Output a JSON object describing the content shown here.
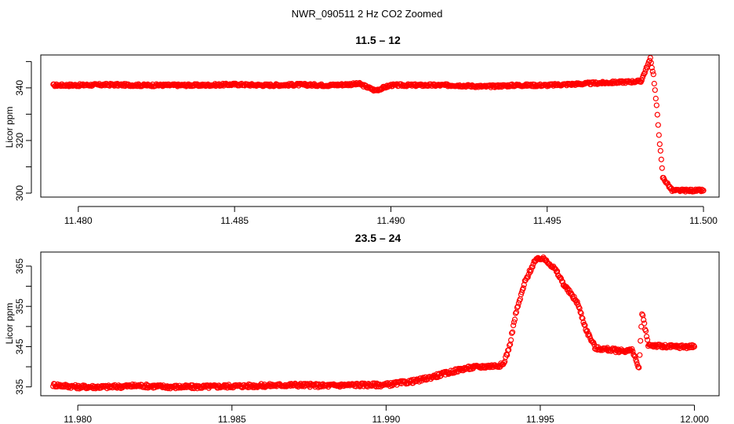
{
  "figure_title": "NWR_090511  2 Hz CO2 Zoomed",
  "chart_data": [
    {
      "type": "scatter",
      "title": "11.5 – 12",
      "xlabel": "",
      "ylabel": "Licor ppm",
      "xlim": [
        11.4788,
        11.5005
      ],
      "ylim": [
        298.5,
        352.5
      ],
      "x_ticks": [
        11.48,
        11.485,
        11.49,
        11.495,
        11.5
      ],
      "x_tick_labels": [
        "11.480",
        "11.485",
        "11.490",
        "11.495",
        "11.500"
      ],
      "y_ticks": [
        300,
        320,
        340
      ],
      "y_tick_labels": [
        "300",
        "320",
        "340"
      ],
      "marker": "open-circle",
      "color": "#ff0000",
      "grid": false,
      "series": [
        {
          "x": [
            11.4792,
            11.48,
            11.481,
            11.482,
            11.483,
            11.484,
            11.485,
            11.486,
            11.487,
            11.488,
            11.489,
            11.4895,
            11.49,
            11.491,
            11.492,
            11.493,
            11.494,
            11.495,
            11.496,
            11.497,
            11.498,
            11.4983,
            11.4984,
            11.4985,
            11.4986,
            11.4987,
            11.499,
            11.4995,
            11.5
          ],
          "y": [
            341,
            341,
            341.2,
            341,
            341,
            341,
            341.3,
            341,
            341.2,
            341,
            341.5,
            339,
            341,
            341,
            341,
            340.5,
            341,
            341,
            341.5,
            342,
            342.5,
            351,
            345,
            333,
            319,
            306,
            301,
            301,
            301
          ]
        }
      ]
    },
    {
      "type": "scatter",
      "title": "23.5 – 24",
      "xlabel": "",
      "ylabel": "Licor ppm",
      "xlim": [
        11.9788,
        12.0008
      ],
      "ylim": [
        332.8,
        368.5
      ],
      "x_ticks": [
        11.98,
        11.985,
        11.99,
        11.995,
        12.0
      ],
      "x_tick_labels": [
        "11.980",
        "11.985",
        "11.990",
        "11.995",
        "12.000"
      ],
      "y_ticks": [
        335,
        345,
        355,
        365
      ],
      "y_tick_labels": [
        "335",
        "345",
        "355",
        "365"
      ],
      "marker": "open-circle",
      "color": "#ff0000",
      "grid": false,
      "series": [
        {
          "x": [
            11.9792,
            11.98,
            11.981,
            11.982,
            11.983,
            11.984,
            11.985,
            11.986,
            11.987,
            11.988,
            11.989,
            11.99,
            11.991,
            11.992,
            11.9925,
            11.993,
            11.9935,
            11.9938,
            11.994,
            11.9942,
            11.9945,
            11.9948,
            11.995,
            11.9952,
            11.9955,
            11.9958,
            11.9962,
            11.9965,
            11.9968,
            11.997,
            11.9975,
            11.998,
            11.9982,
            11.99825,
            11.9983,
            11.9985,
            11.999,
            11.9995,
            12.0
          ],
          "y": [
            335.5,
            335,
            335,
            335.3,
            335,
            335,
            335.2,
            335.3,
            335.5,
            335.3,
            335.5,
            335.5,
            336.5,
            338.5,
            339.5,
            340,
            340.2,
            340.5,
            345,
            353,
            361,
            366,
            367,
            366.5,
            364,
            360,
            356,
            349,
            344.5,
            344.5,
            344,
            344,
            339.5,
            346,
            353.5,
            345.5,
            345,
            345,
            345
          ]
        }
      ]
    }
  ]
}
